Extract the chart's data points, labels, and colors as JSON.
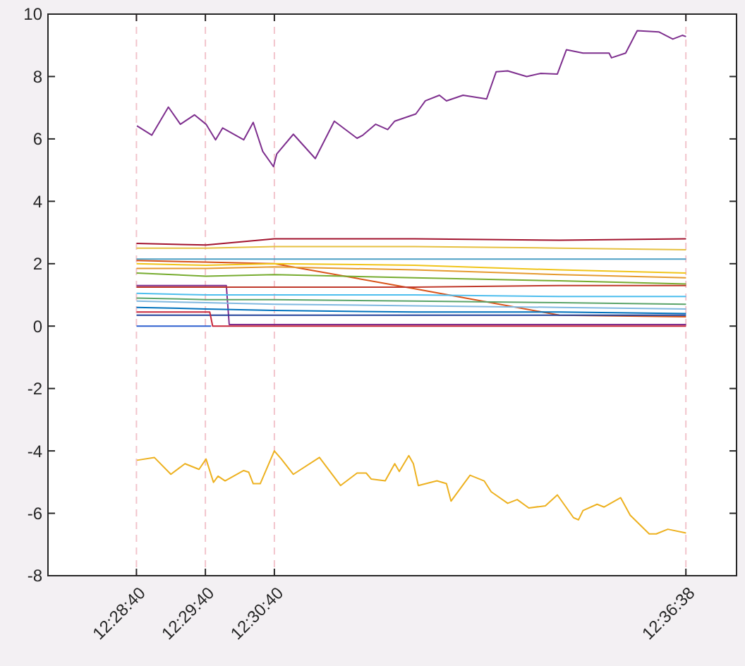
{
  "chart_data": {
    "type": "line",
    "x": [
      12.4778,
      12.4946,
      12.5111,
      12.545,
      12.58,
      12.6106
    ],
    "xlim": [
      12.4564,
      12.6228
    ],
    "ylim": [
      -8,
      10
    ],
    "yticks": [
      -8,
      -6,
      -4,
      -2,
      0,
      2,
      4,
      6,
      8,
      10
    ],
    "xticks": [
      {
        "value": 12.47778,
        "label": "12:28:40"
      },
      {
        "value": 12.49444,
        "label": "12:29:40"
      },
      {
        "value": 12.51111,
        "label": "12:30:40"
      },
      {
        "value": 12.61056,
        "label": "12:36:38"
      }
    ],
    "ref_lines": [
      {
        "axis": "x",
        "value": 12.47778,
        "color": "#f2c4cc",
        "line_style": "dashed"
      },
      {
        "axis": "x",
        "value": 12.49444,
        "color": "#f2c4cc",
        "line_style": "dashed"
      },
      {
        "axis": "x",
        "value": 12.51111,
        "color": "#f2c4cc",
        "line_style": "dashed"
      },
      {
        "axis": "x",
        "value": 12.61056,
        "color": "#f2c4cc",
        "line_style": "dashed"
      }
    ],
    "series": [
      {
        "color": "#7e2f8e",
        "x": [
          12.4779,
          12.4815,
          12.4855,
          12.4884,
          12.4918,
          12.4946,
          12.4969,
          12.4986,
          12.5037,
          12.506,
          12.5083,
          12.5109,
          12.5117,
          12.5157,
          12.521,
          12.5256,
          12.5311,
          12.5325,
          12.5356,
          12.5385,
          12.5402,
          12.5453,
          12.5476,
          12.551,
          12.5527,
          12.5567,
          12.5624,
          12.5647,
          12.5675,
          12.5721,
          12.5755,
          12.5795,
          12.5817,
          12.5857,
          12.592,
          12.5926,
          12.596,
          12.5988,
          12.604,
          12.6074,
          12.6097,
          12.6106
        ],
        "values": [
          6.42,
          6.12,
          7.02,
          6.47,
          6.77,
          6.47,
          5.97,
          6.35,
          5.97,
          6.53,
          5.6,
          5.11,
          5.52,
          6.15,
          5.37,
          6.57,
          6.02,
          6.12,
          6.47,
          6.3,
          6.57,
          6.8,
          7.22,
          7.4,
          7.22,
          7.4,
          7.28,
          8.15,
          8.18,
          8.0,
          8.1,
          8.08,
          8.86,
          8.75,
          8.75,
          8.6,
          8.75,
          9.47,
          9.43,
          9.2,
          9.32,
          9.28
        ]
      },
      {
        "color": "#edb120",
        "x": [
          12.4779,
          12.4821,
          12.4861,
          12.4895,
          12.4929,
          12.4946,
          12.4964,
          12.4975,
          12.4992,
          12.5037,
          12.5049,
          12.506,
          12.5077,
          12.5111,
          12.5128,
          12.5157,
          12.522,
          12.5271,
          12.5311,
          12.5333,
          12.5345,
          12.5379,
          12.5402,
          12.5413,
          12.5436,
          12.5447,
          12.5459,
          12.5504,
          12.5527,
          12.5538,
          12.5584,
          12.5618,
          12.5635,
          12.5675,
          12.5698,
          12.5726,
          12.5766,
          12.5795,
          12.5834,
          12.5846,
          12.5857,
          12.5891,
          12.5908,
          12.5948,
          12.5971,
          12.6017,
          12.6034,
          12.6062,
          12.6106
        ],
        "values": [
          -4.3,
          -4.21,
          -4.75,
          -4.41,
          -4.59,
          -4.26,
          -5.01,
          -4.81,
          -4.96,
          -4.63,
          -4.68,
          -5.05,
          -5.05,
          -4.0,
          -4.26,
          -4.75,
          -4.21,
          -5.11,
          -4.71,
          -4.71,
          -4.9,
          -4.96,
          -4.41,
          -4.66,
          -4.15,
          -4.41,
          -5.11,
          -4.96,
          -5.05,
          -5.61,
          -4.78,
          -4.96,
          -5.31,
          -5.68,
          -5.56,
          -5.83,
          -5.76,
          -5.41,
          -6.14,
          -6.21,
          -5.91,
          -5.71,
          -5.8,
          -5.5,
          -6.06,
          -6.66,
          -6.66,
          -6.51,
          -6.63
        ]
      },
      {
        "color": "#a2142f",
        "values": [
          2.65,
          2.6,
          2.8,
          2.8,
          2.75,
          2.8
        ]
      },
      {
        "color": "#e6c040",
        "values": [
          2.5,
          2.5,
          2.55,
          2.55,
          2.5,
          2.45
        ]
      },
      {
        "color": "#4d9fc4",
        "values": [
          2.15,
          2.15,
          2.15,
          2.15,
          2.15,
          2.15
        ]
      },
      {
        "color": "#d95319",
        "values": [
          2.1,
          2.05,
          2.0,
          1.2,
          0.35,
          0.3
        ]
      },
      {
        "color": "#f0c419",
        "values": [
          2.0,
          1.95,
          2.0,
          1.95,
          1.8,
          1.7
        ]
      },
      {
        "color": "#e59a2f",
        "values": [
          1.85,
          1.85,
          1.9,
          1.8,
          1.65,
          1.55
        ]
      },
      {
        "color": "#77ac30",
        "values": [
          1.7,
          1.6,
          1.65,
          1.55,
          1.45,
          1.35
        ]
      },
      {
        "color": "#7e2f8e",
        "x": [
          12.4778,
          12.4995,
          12.5002,
          12.6106
        ],
        "values": [
          1.3,
          1.3,
          0.05,
          0.05
        ]
      },
      {
        "color": "#c0392b",
        "values": [
          1.25,
          1.25,
          1.25,
          1.25,
          1.3,
          1.3
        ]
      },
      {
        "color": "#4dbeee",
        "values": [
          1.05,
          1.0,
          1.0,
          1.0,
          0.95,
          0.95
        ]
      },
      {
        "color": "#5aa469",
        "values": [
          0.9,
          0.85,
          0.85,
          0.8,
          0.75,
          0.7
        ]
      },
      {
        "color": "#7fb8e0",
        "values": [
          0.8,
          0.75,
          0.7,
          0.65,
          0.6,
          0.55
        ]
      },
      {
        "color": "#0072bd",
        "values": [
          0.6,
          0.55,
          0.5,
          0.45,
          0.45,
          0.4
        ]
      },
      {
        "color": "#1f3f99",
        "values": [
          0.35,
          0.35,
          0.35,
          0.35,
          0.35,
          0.35
        ]
      },
      {
        "color": "#2e5fd0",
        "x": [
          12.4778,
          12.4958
        ],
        "values": [
          0.0,
          0.0
        ]
      },
      {
        "color": "#c8283c",
        "x": [
          12.4778,
          12.4955,
          12.4962,
          12.6106
        ],
        "values": [
          0.45,
          0.45,
          0.0,
          0.0
        ]
      }
    ]
  }
}
